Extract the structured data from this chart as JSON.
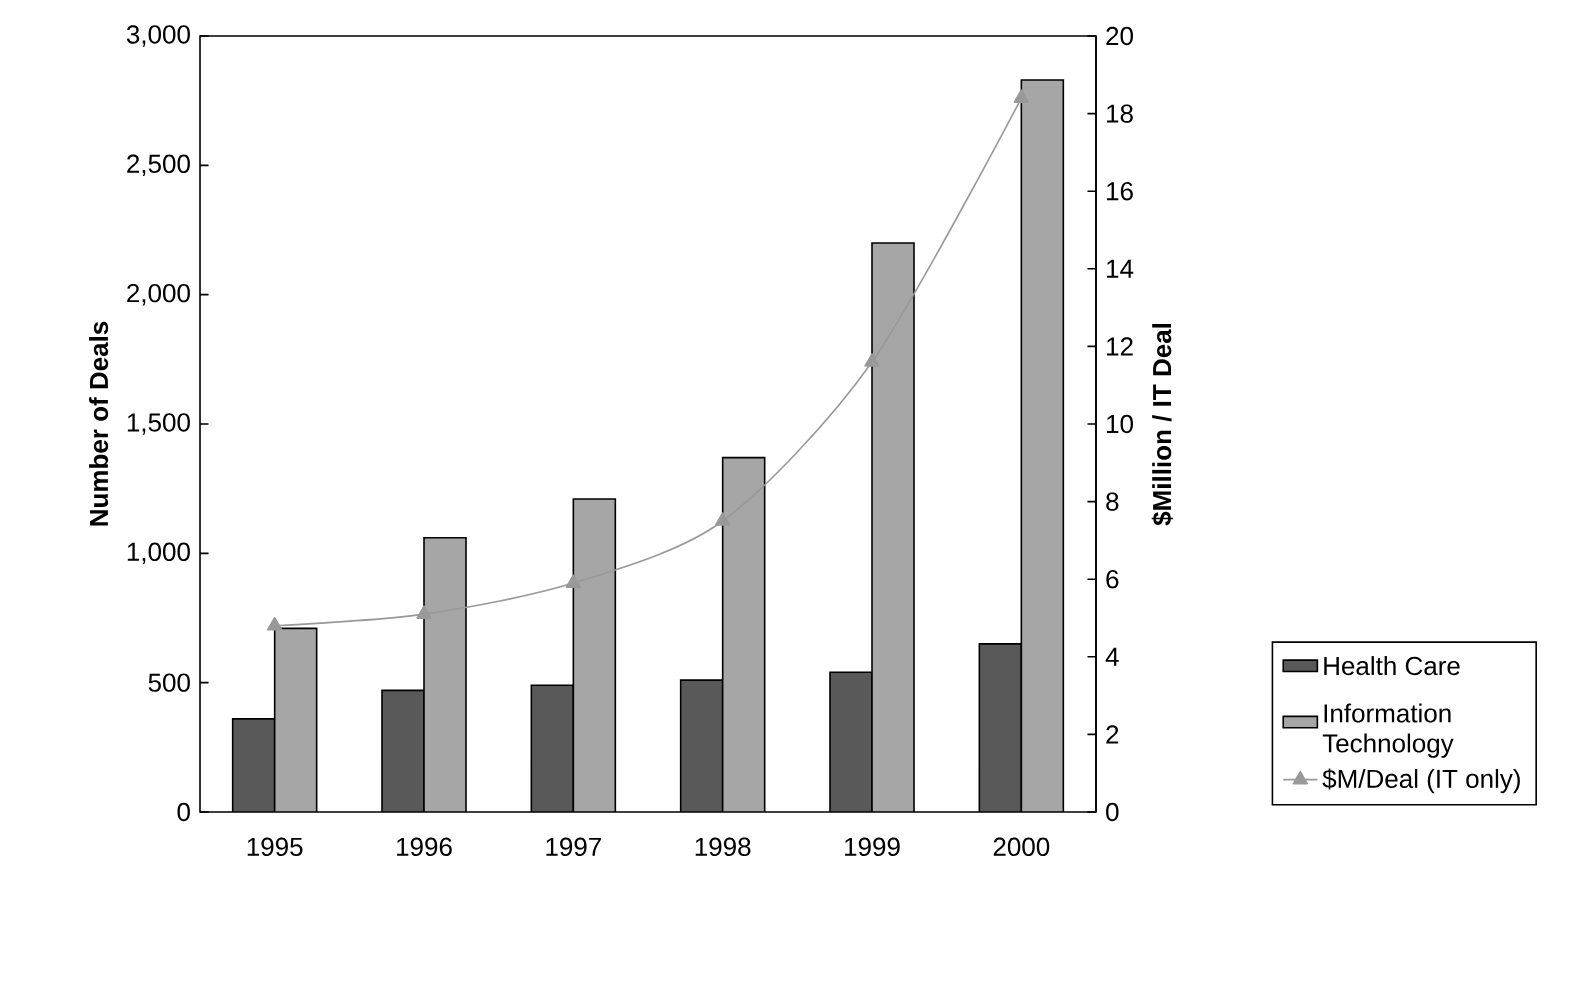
{
  "chart_data": {
    "type": "bar",
    "categories": [
      "1995",
      "1996",
      "1997",
      "1998",
      "1999",
      "2000"
    ],
    "ylabel": "Number of Deals",
    "y2label": "$Million / IT Deal",
    "ylim": [
      0,
      3000
    ],
    "yticks": [
      0,
      500,
      {
        "value": 1000,
        "label": "1,000"
      },
      {
        "value": 1500,
        "label": "1,500"
      },
      {
        "value": 2000,
        "label": "2,000"
      },
      {
        "value": 2500,
        "label": "2,500"
      },
      {
        "value": 3000,
        "label": "3,000"
      }
    ],
    "y2lim": [
      0,
      20
    ],
    "y2ticks": [
      0,
      2,
      4,
      6,
      8,
      10,
      12,
      14,
      16,
      18,
      20
    ],
    "legend": "bottom right",
    "grid": false,
    "series": [
      {
        "name": "Health Care",
        "color": "#595959",
        "values": [
          360,
          470,
          490,
          510,
          540,
          650
        ]
      },
      {
        "name": "Information Technology",
        "color": "#a6a6a6",
        "values": [
          710,
          1060,
          1210,
          1370,
          2200,
          2830
        ]
      },
      {
        "name": "$M/Deal (IT only)",
        "color": "#999999",
        "type": "line",
        "axis": "y2",
        "marker": "triangle",
        "line_style": "solid",
        "values": [
          4.8,
          5.1,
          5.9,
          7.5,
          11.6,
          18.4
        ]
      }
    ]
  }
}
